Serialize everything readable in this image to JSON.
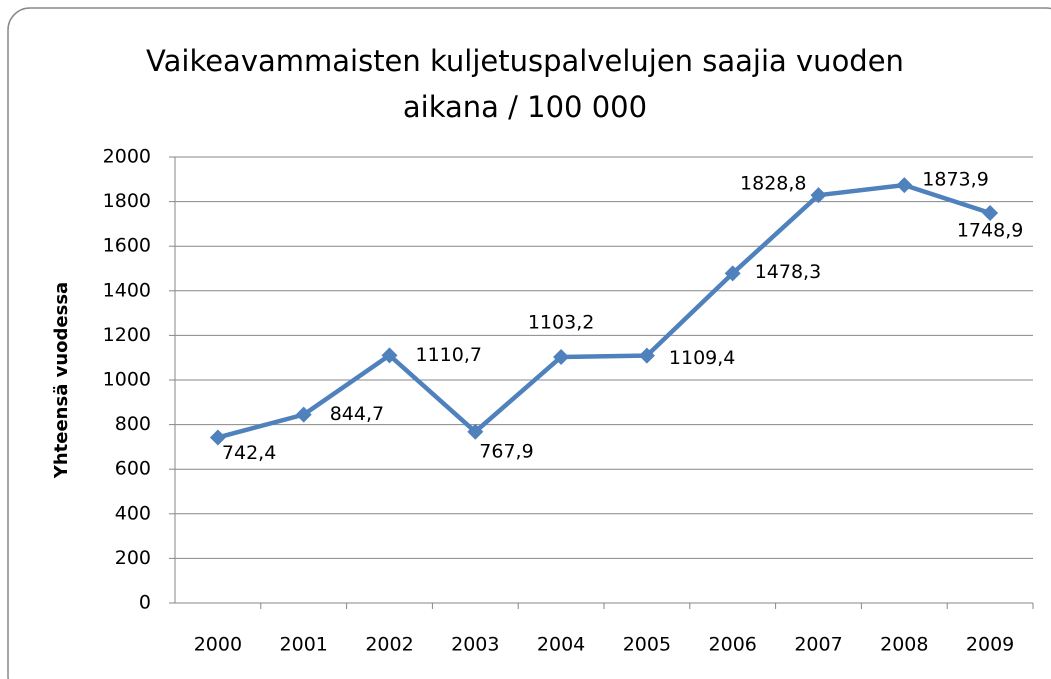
{
  "chart_data": {
    "type": "line",
    "title": "Vaikeavammaisten kuljetuspalvelujen saajia vuoden aikana / 100 000",
    "y_label": "Yhteensä vuodessa",
    "categories": [
      "2000",
      "2001",
      "2002",
      "2003",
      "2004",
      "2005",
      "2006",
      "2007",
      "2008",
      "2009"
    ],
    "series": [
      {
        "name": "Yhteensä vuodessa",
        "color": "#4f81bd",
        "values": [
          742.4,
          844.7,
          1110.7,
          767.9,
          1103.2,
          1109.4,
          1478.3,
          1828.8,
          1873.9,
          1748.9
        ],
        "value_labels": [
          "742,4",
          "844,7",
          "1110,7",
          "767,9",
          "1103,2",
          "1109,4",
          "1478,3",
          "1828,8",
          "1873,9",
          "1748,9"
        ]
      }
    ],
    "ylim": [
      0,
      2000
    ],
    "yticks": [
      0,
      200,
      400,
      600,
      800,
      1000,
      1200,
      1400,
      1600,
      1800,
      2000
    ],
    "grid": true
  }
}
